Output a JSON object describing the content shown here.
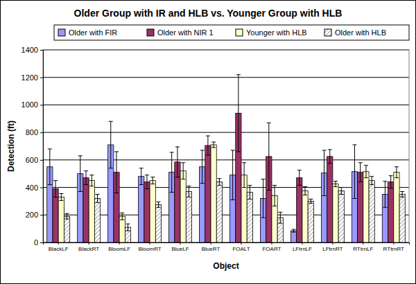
{
  "chart_data": {
    "type": "bar",
    "title": "Older Group with IR and HLB vs. Younger Group with HLB",
    "x_label": "Object",
    "y_label": "Detection (ft)",
    "categories": [
      "BlackLF",
      "BlackRT",
      "BloomLF",
      "BloomRT",
      "BlueLF",
      "BlueRT",
      "FOALT",
      "FOART",
      "LFtrnLF",
      "LFtrnRT",
      "RTtrnLF",
      "RTtrnRT"
    ],
    "series": [
      {
        "name": "Older with FIR",
        "color": "#9999ff",
        "values": [
          550,
          500,
          710,
          480,
          510,
          550,
          490,
          320,
          85,
          505,
          515,
          350
        ],
        "errors": [
          130,
          130,
          170,
          60,
          145,
          120,
          180,
          140,
          10,
          165,
          195,
          95
        ]
      },
      {
        "name": "Older with NIR 1",
        "color": "#993366",
        "values": [
          390,
          470,
          510,
          440,
          585,
          705,
          940,
          625,
          470,
          625,
          510,
          440
        ],
        "errors": [
          60,
          50,
          150,
          50,
          110,
          70,
          280,
          245,
          55,
          50,
          70,
          45
        ]
      },
      {
        "name": "Younger with HLB",
        "color": "#ffffcc",
        "values": [
          330,
          450,
          190,
          450,
          520,
          710,
          490,
          340,
          375,
          425,
          515,
          510
        ],
        "errors": [
          25,
          40,
          25,
          25,
          60,
          20,
          90,
          75,
          30,
          20,
          45,
          40
        ]
      },
      {
        "name": "Older with HLB",
        "color": "#ffffff",
        "values": [
          190,
          320,
          110,
          275,
          370,
          440,
          365,
          180,
          300,
          375,
          450,
          350
        ],
        "errors": [
          20,
          30,
          25,
          20,
          40,
          25,
          50,
          40,
          15,
          25,
          30,
          20
        ]
      }
    ],
    "ylim": [
      0,
      1400
    ],
    "yticks": [
      0,
      200,
      400,
      600,
      800,
      1000,
      1200,
      1400
    ],
    "grid": true,
    "legend": "top"
  }
}
